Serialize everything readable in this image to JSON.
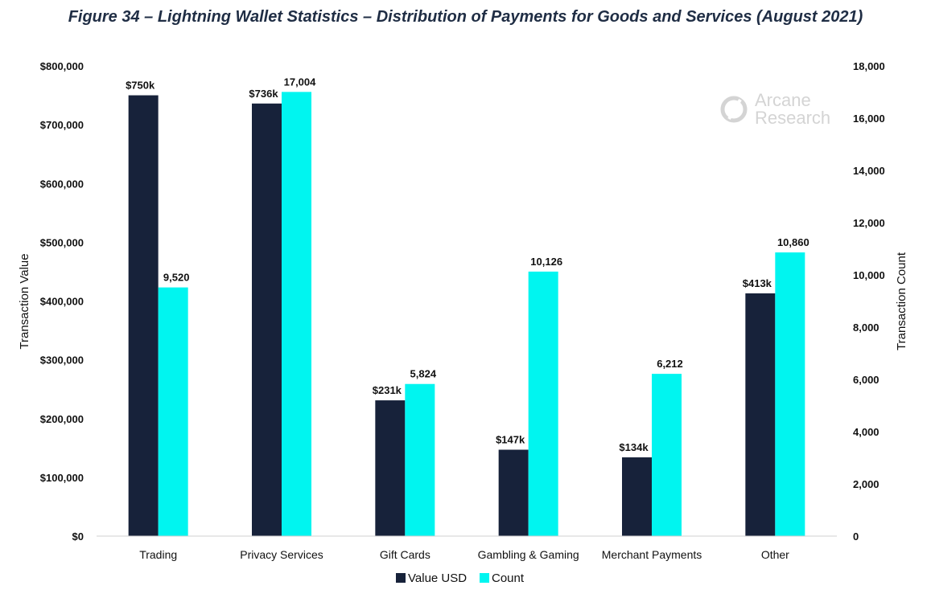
{
  "chart_data": {
    "type": "bar",
    "title": "Figure 34 – Lightning Wallet Statistics – Distribution of Payments for Goods and Services (August 2021)",
    "categories": [
      "Trading",
      "Privacy Services",
      "Gift Cards",
      "Gambling & Gaming",
      "Merchant Payments",
      "Other"
    ],
    "series": [
      {
        "name": "Value USD",
        "axis": "left",
        "color": "#17223a",
        "values": [
          750000,
          736000,
          231000,
          147000,
          134000,
          413000
        ],
        "labels": [
          "$750k",
          "$736k",
          "$231k",
          "$147k",
          "$134k",
          "$413k"
        ]
      },
      {
        "name": "Count",
        "axis": "right",
        "color": "#00f5f0",
        "values": [
          9520,
          17004,
          5824,
          10126,
          6212,
          10860
        ],
        "labels": [
          "9,520",
          "17,004",
          "5,824",
          "10,126",
          "6,212",
          "10,860"
        ]
      }
    ],
    "ylabel": "Transaction Value",
    "y2label": "Transaction Count",
    "ylim": [
      0,
      800000
    ],
    "y2lim": [
      0,
      18000
    ],
    "yticks": [
      0,
      100000,
      200000,
      300000,
      400000,
      500000,
      600000,
      700000,
      800000
    ],
    "yticklabels": [
      "$0",
      "$100,000",
      "$200,000",
      "$300,000",
      "$400,000",
      "$500,000",
      "$600,000",
      "$700,000",
      "$800,000"
    ],
    "y2ticks": [
      0,
      2000,
      4000,
      6000,
      8000,
      10000,
      12000,
      14000,
      16000,
      18000
    ],
    "y2ticklabels": [
      "0",
      "2,000",
      "4,000",
      "6,000",
      "8,000",
      "10,000",
      "12,000",
      "14,000",
      "16,000",
      "18,000"
    ],
    "grid": false,
    "legend_position": "bottom"
  },
  "watermark": {
    "line1": "Arcane",
    "line2": "Research"
  }
}
